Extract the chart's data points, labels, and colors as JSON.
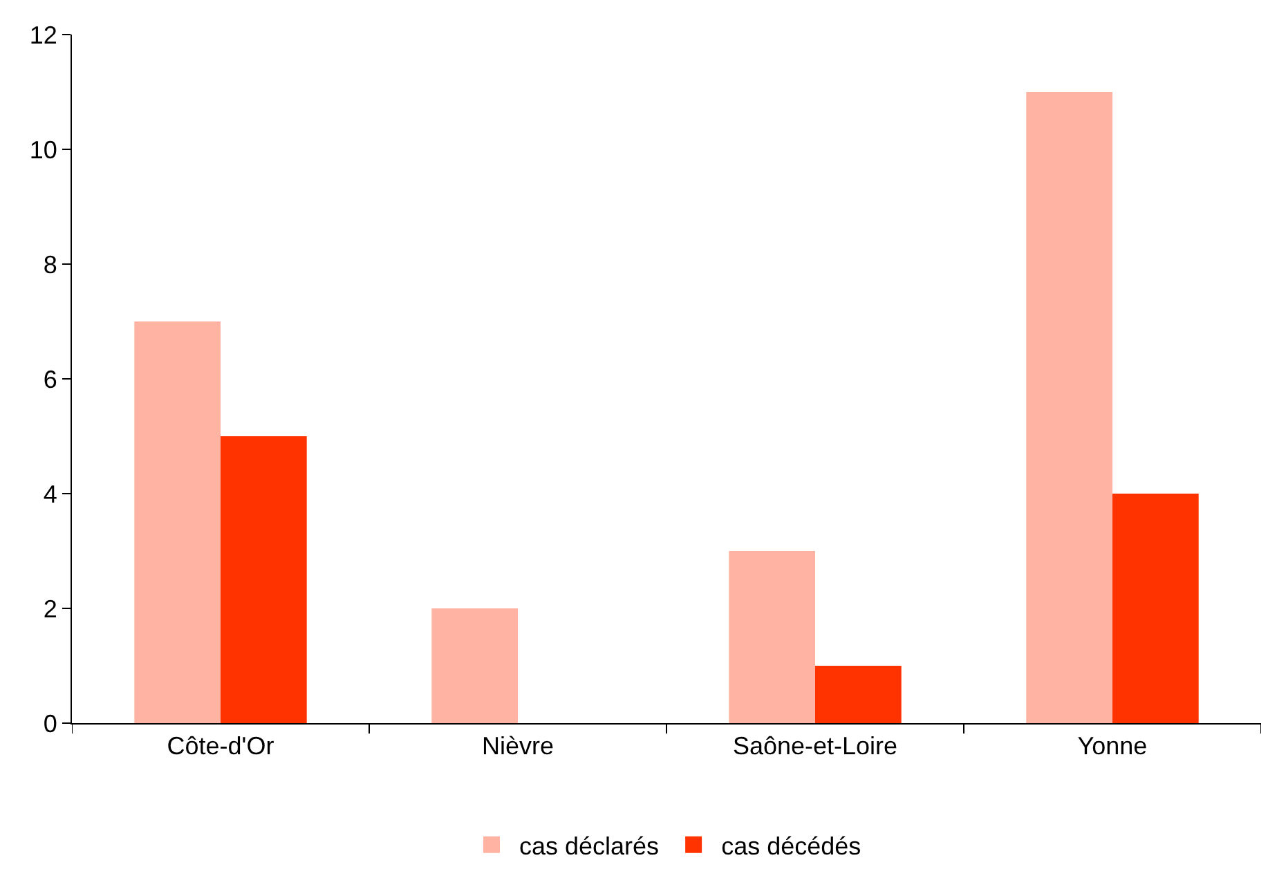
{
  "chart_data": {
    "type": "bar",
    "categories": [
      "Côte-d'Or",
      "Nièvre",
      "Saône-et-Loire",
      "Yonne"
    ],
    "series": [
      {
        "name": "cas déclarés",
        "color": "#ffb3a3",
        "values": [
          7,
          2,
          3,
          11
        ]
      },
      {
        "name": "cas décédés",
        "color": "#ff3300",
        "values": [
          5,
          0,
          1,
          4
        ]
      }
    ],
    "ylim": [
      0,
      12
    ],
    "yticks": [
      0,
      2,
      4,
      6,
      8,
      10,
      12
    ],
    "legend": "bottom"
  }
}
